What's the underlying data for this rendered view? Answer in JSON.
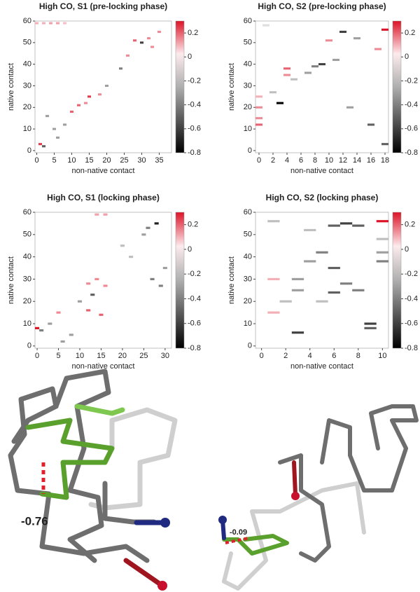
{
  "chart_data": [
    {
      "type": "heatmap",
      "title": "High CO, S1 (pre-locking phase)",
      "x_label": "non-native contact",
      "y_label": "native contact",
      "xlim": [
        -0.5,
        38.5
      ],
      "xticks": [
        0,
        5,
        10,
        15,
        20,
        25,
        30,
        35
      ],
      "ylim": [
        -1,
        60
      ],
      "yticks": [
        0,
        10,
        20,
        30,
        40,
        50,
        60
      ],
      "clim": [
        -0.8,
        0.3
      ],
      "cticks": [
        0.2,
        0,
        -0.2,
        -0.4,
        -0.6,
        -0.8
      ],
      "x": [
        0,
        2,
        4,
        6,
        8,
        30,
        28,
        32,
        15,
        12,
        10,
        14,
        24,
        1,
        2,
        5,
        8,
        35,
        20,
        18,
        3,
        26,
        6,
        33
      ],
      "y": [
        59,
        59,
        59,
        59,
        59,
        50,
        51,
        52,
        25,
        21,
        18,
        22,
        38,
        3,
        2,
        10,
        12,
        55,
        30,
        26,
        16,
        44,
        6,
        48
      ],
      "values": [
        0.1,
        0.1,
        0.12,
        0.12,
        0.08,
        -0.6,
        0.2,
        0.15,
        0.25,
        0.2,
        0.2,
        0.15,
        -0.4,
        0.25,
        -0.5,
        -0.3,
        -0.3,
        0.15,
        -0.3,
        0.15,
        -0.3,
        0.15,
        -0.3,
        0.15
      ]
    },
    {
      "type": "heatmap",
      "title": "High CO, S2 (pre-locking phase)",
      "x_label": "non-native contact",
      "y_label": "native contact",
      "xlim": [
        -0.5,
        18.5
      ],
      "xticks": [
        0,
        2,
        4,
        6,
        8,
        10,
        12,
        14,
        16,
        18
      ],
      "ylim": [
        -1,
        60
      ],
      "yticks": [
        0,
        10,
        20,
        30,
        40,
        50,
        60
      ],
      "clim": [
        -0.8,
        0.3
      ],
      "cticks": [
        0.2,
        0,
        -0.2,
        -0.4,
        -0.6,
        -0.8
      ],
      "x": [
        18,
        3,
        0,
        0,
        0,
        0,
        4,
        4,
        9,
        10,
        12,
        14,
        8,
        11,
        16,
        18,
        5,
        1,
        7,
        13,
        2,
        17
      ],
      "y": [
        56,
        22,
        12,
        15,
        20,
        25,
        38,
        35,
        40,
        51,
        55,
        52,
        39,
        42,
        12,
        3,
        33,
        58,
        36,
        20,
        27,
        47
      ],
      "values": [
        0.3,
        -0.8,
        0.2,
        0.15,
        0.15,
        0.1,
        0.2,
        0.15,
        -0.6,
        0.15,
        -0.6,
        -0.3,
        -0.4,
        -0.3,
        -0.5,
        -0.5,
        -0.2,
        -0.1,
        -0.3,
        -0.3,
        -0.2,
        0.15
      ]
    },
    {
      "type": "heatmap",
      "title": "High CO, S1 (locking phase)",
      "x_label": "non-native contact",
      "y_label": "native contact",
      "xlim": [
        -0.5,
        31.5
      ],
      "xticks": [
        0,
        5,
        10,
        15,
        20,
        25,
        30
      ],
      "ylim": [
        -1,
        60
      ],
      "yticks": [
        0,
        10,
        20,
        30,
        40,
        50,
        60
      ],
      "clim": [
        -0.8,
        0.3
      ],
      "cticks": [
        0.2,
        0,
        -0.2,
        -0.4,
        -0.6,
        -0.8
      ],
      "x": [
        0,
        1,
        28,
        26,
        25,
        12,
        14,
        16,
        12,
        15,
        13,
        10,
        29,
        30,
        5,
        3,
        8,
        14,
        16,
        22,
        20,
        27,
        6
      ],
      "y": [
        8,
        7,
        55,
        53,
        50,
        28,
        30,
        27,
        16,
        14,
        23,
        20,
        27,
        35,
        15,
        10,
        5,
        59,
        59,
        40,
        45,
        30,
        2
      ],
      "values": [
        0.3,
        -0.4,
        -0.7,
        -0.4,
        -0.3,
        0.15,
        0.15,
        0.15,
        0.2,
        0.2,
        -0.5,
        -0.3,
        -0.4,
        -0.3,
        0.15,
        -0.3,
        -0.3,
        0.12,
        0.12,
        -0.2,
        -0.2,
        -0.4,
        -0.3
      ]
    },
    {
      "type": "heatmap",
      "title": "High CO, S2 (locking phase)",
      "x_label": "non-native contact",
      "y_label": "native contact",
      "xlim": [
        -0.5,
        10.5
      ],
      "xticks": [
        0,
        2,
        4,
        6,
        8,
        10
      ],
      "ylim": [
        -1,
        60
      ],
      "yticks": [
        0,
        10,
        20,
        30,
        40,
        50,
        60
      ],
      "clim": [
        -0.8,
        0.3
      ],
      "cticks": [
        0.2,
        0,
        -0.2,
        -0.4,
        -0.6,
        -0.8
      ],
      "x": [
        10,
        1,
        6,
        7,
        8,
        5,
        4,
        9,
        9,
        3,
        3,
        6,
        7,
        8,
        6,
        10,
        10,
        2,
        1,
        1,
        5,
        10,
        4,
        3
      ],
      "y": [
        56,
        56,
        54,
        55,
        54,
        42,
        38,
        10,
        8,
        30,
        25,
        35,
        28,
        25,
        24,
        42,
        38,
        20,
        15,
        30,
        20,
        48,
        52,
        6
      ],
      "values": [
        0.3,
        -0.2,
        -0.5,
        -0.6,
        -0.5,
        -0.4,
        -0.3,
        -0.6,
        -0.5,
        -0.3,
        -0.3,
        -0.5,
        -0.4,
        -0.4,
        -0.5,
        -0.3,
        -0.4,
        -0.2,
        0.1,
        0.1,
        -0.2,
        -0.2,
        -0.2,
        -0.6
      ]
    }
  ],
  "figure": {
    "annotations": [
      "-0.76",
      "-0.09"
    ]
  }
}
